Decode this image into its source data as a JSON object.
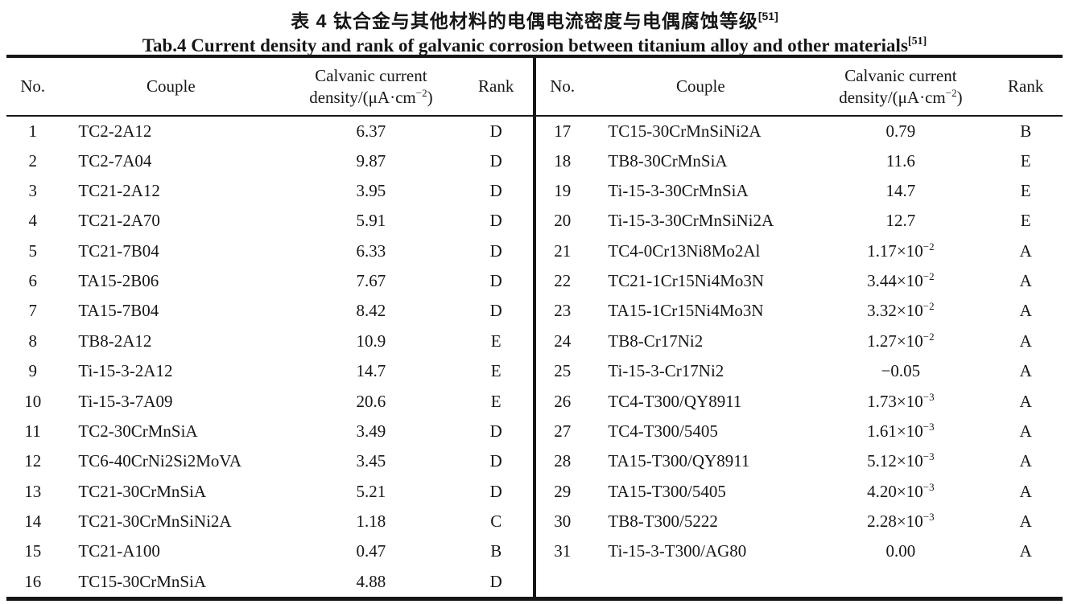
{
  "title_cn": {
    "text": "表 4  钛合金与其他材料的电偶电流密度与电偶腐蚀等级",
    "ref": "[51]"
  },
  "title_en": {
    "text": "Tab.4 Current density and rank of galvanic corrosion between titanium alloy and other materials",
    "ref": "[51]"
  },
  "columns": {
    "no": "No.",
    "couple": "Couple",
    "density_line1": "Calvanic current",
    "density_line2_pre": "density/(μA·cm",
    "density_line2_sup": "−2",
    "density_line2_post": ")",
    "rank": "Rank"
  },
  "left_rows": [
    {
      "no": "1",
      "couple": "TC2-2A12",
      "density": "6.37",
      "rank": "D"
    },
    {
      "no": "2",
      "couple": "TC2-7A04",
      "density": "9.87",
      "rank": "D"
    },
    {
      "no": "3",
      "couple": "TC21-2A12",
      "density": "3.95",
      "rank": "D"
    },
    {
      "no": "4",
      "couple": "TC21-2A70",
      "density": "5.91",
      "rank": "D"
    },
    {
      "no": "5",
      "couple": "TC21-7B04",
      "density": "6.33",
      "rank": "D"
    },
    {
      "no": "6",
      "couple": "TA15-2B06",
      "density": "7.67",
      "rank": "D"
    },
    {
      "no": "7",
      "couple": "TA15-7B04",
      "density": "8.42",
      "rank": "D"
    },
    {
      "no": "8",
      "couple": "TB8-2A12",
      "density": "10.9",
      "rank": "E"
    },
    {
      "no": "9",
      "couple": "Ti-15-3-2A12",
      "density": "14.7",
      "rank": "E"
    },
    {
      "no": "10",
      "couple": "Ti-15-3-7A09",
      "density": "20.6",
      "rank": "E"
    },
    {
      "no": "11",
      "couple": "TC2-30CrMnSiA",
      "density": "3.49",
      "rank": "D"
    },
    {
      "no": "12",
      "couple": "TC6-40CrNi2Si2MoVA",
      "density": "3.45",
      "rank": "D"
    },
    {
      "no": "13",
      "couple": "TC21-30CrMnSiA",
      "density": "5.21",
      "rank": "D"
    },
    {
      "no": "14",
      "couple": "TC21-30CrMnSiNi2A",
      "density": "1.18",
      "rank": "C"
    },
    {
      "no": "15",
      "couple": "TC21-A100",
      "density": "0.47",
      "rank": "B"
    },
    {
      "no": "16",
      "couple": "TC15-30CrMnSiA",
      "density": "4.88",
      "rank": "D"
    }
  ],
  "right_rows": [
    {
      "no": "17",
      "couple": "TC15-30CrMnSiNi2A",
      "density": "0.79",
      "rank": "B"
    },
    {
      "no": "18",
      "couple": "TB8-30CrMnSiA",
      "density": "11.6",
      "rank": "E"
    },
    {
      "no": "19",
      "couple": "Ti-15-3-30CrMnSiA",
      "density": "14.7",
      "rank": "E"
    },
    {
      "no": "20",
      "couple": "Ti-15-3-30CrMnSiNi2A",
      "density": "12.7",
      "rank": "E"
    },
    {
      "no": "21",
      "couple": "TC4-0Cr13Ni8Mo2Al",
      "density": "1.17",
      "density_exp": "−2",
      "rank": "A"
    },
    {
      "no": "22",
      "couple": "TC21-1Cr15Ni4Mo3N",
      "density": "3.44",
      "density_exp": "−2",
      "rank": "A"
    },
    {
      "no": "23",
      "couple": "TA15-1Cr15Ni4Mo3N",
      "density": "3.32",
      "density_exp": "−2",
      "rank": "A"
    },
    {
      "no": "24",
      "couple": "TB8-Cr17Ni2",
      "density": "1.27",
      "density_exp": "−2",
      "rank": "A"
    },
    {
      "no": "25",
      "couple": "Ti-15-3-Cr17Ni2",
      "density": "−0.05",
      "rank": "A"
    },
    {
      "no": "26",
      "couple": "TC4-T300/QY8911",
      "density": "1.73",
      "density_exp": "−3",
      "rank": "A"
    },
    {
      "no": "27",
      "couple": "TC4-T300/5405",
      "density": "1.61",
      "density_exp": "−3",
      "rank": "A"
    },
    {
      "no": "28",
      "couple": "TA15-T300/QY8911",
      "density": "5.12",
      "density_exp": "−3",
      "rank": "A"
    },
    {
      "no": "29",
      "couple": "TA15-T300/5405",
      "density": "4.20",
      "density_exp": "−3",
      "rank": "A"
    },
    {
      "no": "30",
      "couple": "TB8-T300/5222",
      "density": "2.28",
      "density_exp": "−3",
      "rank": "A"
    },
    {
      "no": "31",
      "couple": "Ti-15-3-T300/AG80",
      "density": "0.00",
      "rank": "A"
    }
  ],
  "colors": {
    "text": "#161616",
    "background": "#ffffff",
    "rule": "#161616"
  }
}
